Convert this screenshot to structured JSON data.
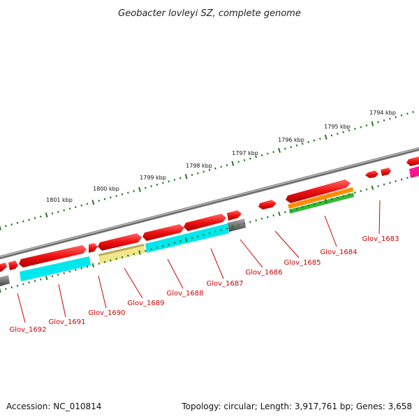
{
  "title": "Geobacter lovleyi SZ, complete genome",
  "footer": {
    "accession": "Accession: NC_010814",
    "summary": "Topology: circular; Length: 3,917,761 bp; Genes: 3,658"
  },
  "scale_ticks": [
    "1801 kbp",
    "1800 kbp",
    "1799 kbp",
    "1798 kbp",
    "1797 kbp",
    "1796 kbp",
    "1795 kbp",
    "1794 kbp"
  ],
  "genes": [
    "Glov_1692",
    "Glov_1691",
    "Glov_1690",
    "Glov_1689",
    "Glov_1688",
    "Glov_1687",
    "Glov_1686",
    "Glov_1685",
    "Glov_1684",
    "Glov_1683"
  ],
  "colors": {
    "forward_gene": "#ee1111",
    "gene_label": "#cc0000",
    "backbone": "#777777",
    "tick": "#227722",
    "cds_cyan": "#00e5ee",
    "cds_yellow": "#f0e68c",
    "cds_orange": "#ff8c00",
    "cds_green": "#33bb33",
    "cds_pink": "#ff1493",
    "cds_grey": "#666666"
  }
}
